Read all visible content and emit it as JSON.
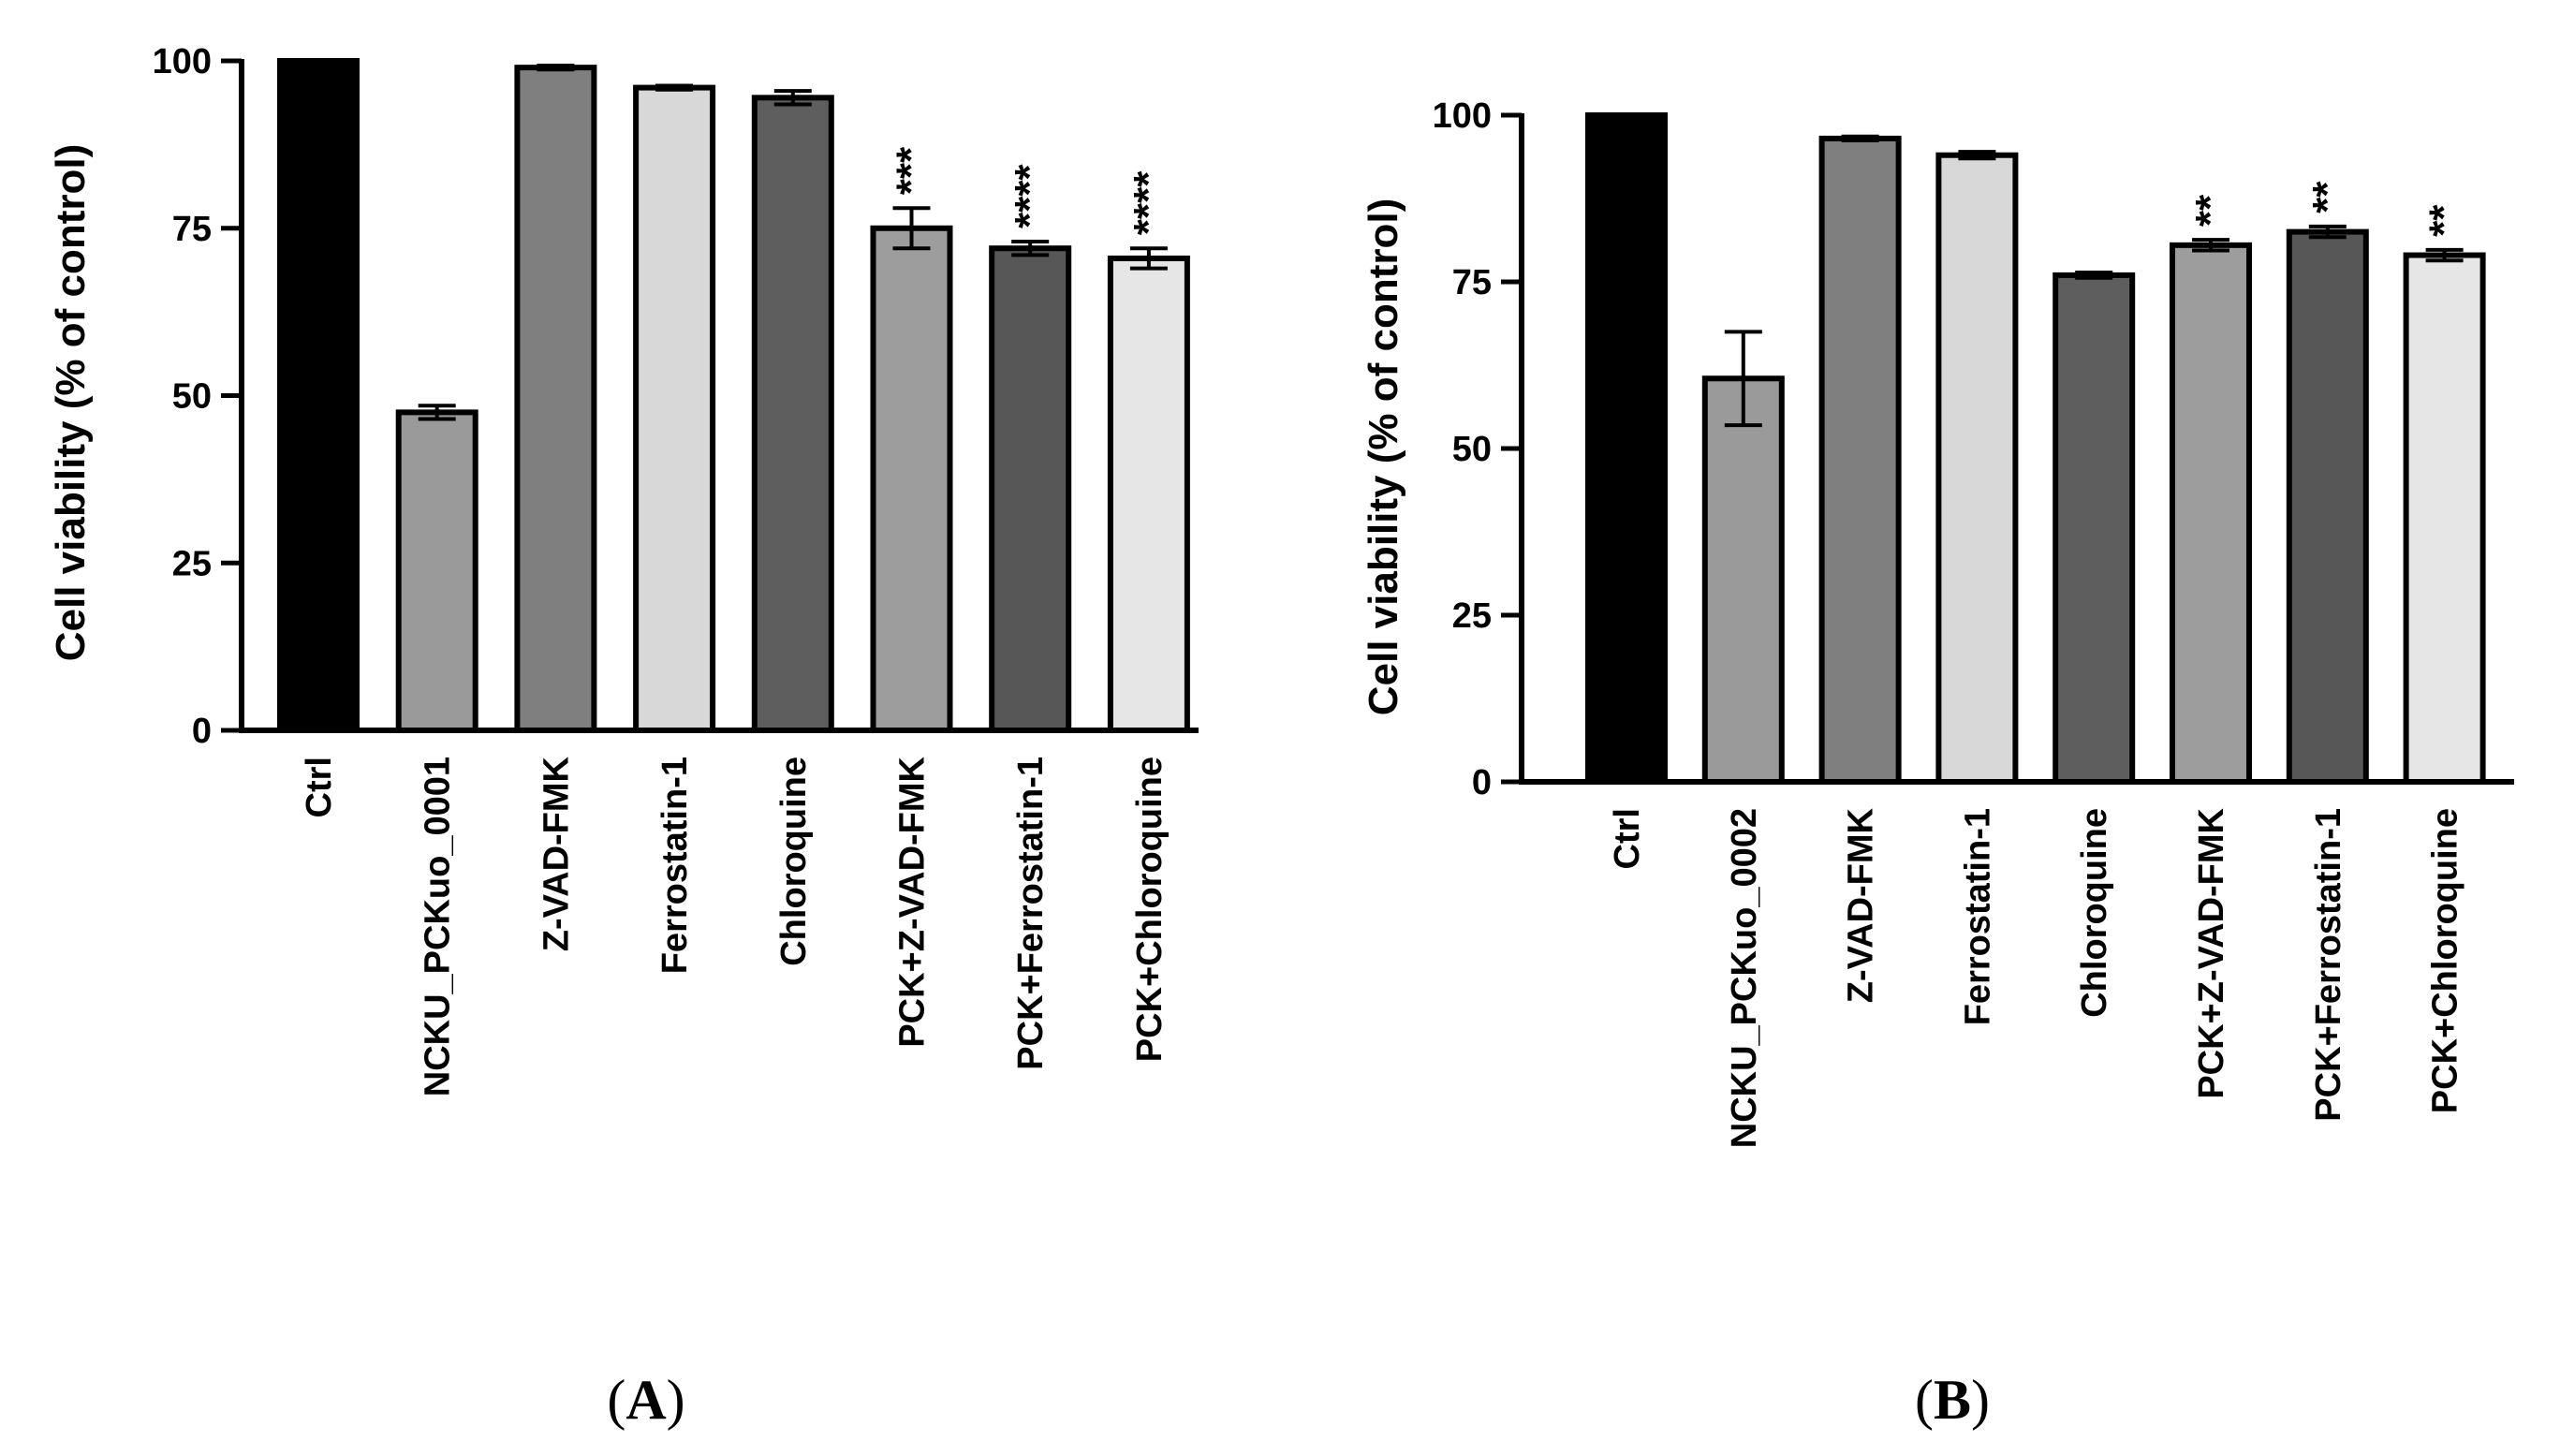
{
  "chart_data": [
    {
      "type": "bar",
      "panel_label": "A",
      "ylabel": "Cell viability (% of control)",
      "ylim": [
        0,
        100
      ],
      "yticks": [
        0,
        25,
        50,
        75,
        100
      ],
      "categories": [
        "Ctrl",
        "NCKU_PCKuo_0001",
        "Z-VAD-FMK",
        "Ferrostatin-1",
        "Chloroquine",
        "PCK+Z-VAD-FMK",
        "PCK+Ferrostatin-1",
        "PCK+Chloroquine"
      ],
      "values": [
        100,
        47.5,
        99,
        96,
        94.5,
        75,
        72,
        70.5
      ],
      "errors": [
        0,
        1.0,
        0.3,
        0.3,
        1.0,
        3.0,
        1.0,
        1.5
      ],
      "significance": [
        "",
        "",
        "",
        "",
        "",
        "***",
        "****",
        "****"
      ],
      "colors": [
        "#000000",
        "#9a9a9a",
        "#7f7f7f",
        "#d8d8d8",
        "#5e5e5e",
        "#9d9d9d",
        "#575757",
        "#e6e6e6"
      ]
    },
    {
      "type": "bar",
      "panel_label": "B",
      "ylabel": "Cell viability (% of control)",
      "ylim": [
        0,
        100
      ],
      "yticks": [
        0,
        25,
        50,
        75,
        100
      ],
      "categories": [
        "Ctrl",
        "NCKU_PCKuo_0002",
        "Z-VAD-FMK",
        "Ferrostatin-1",
        "Chloroquine",
        "PCK+Z-VAD-FMK",
        "PCK+Ferrostatin-1",
        "PCK+Chloroquine"
      ],
      "values": [
        100,
        60.5,
        96.5,
        94,
        76,
        80.5,
        82.5,
        79
      ],
      "errors": [
        0,
        7.0,
        0.3,
        0.5,
        0.4,
        0.8,
        0.8,
        0.8
      ],
      "significance": [
        "",
        "",
        "",
        "",
        "",
        "**",
        "**",
        "**"
      ],
      "colors": [
        "#000000",
        "#9a9a9a",
        "#7f7f7f",
        "#d8d8d8",
        "#5e5e5e",
        "#9d9d9d",
        "#575757",
        "#e6e6e6"
      ]
    }
  ]
}
